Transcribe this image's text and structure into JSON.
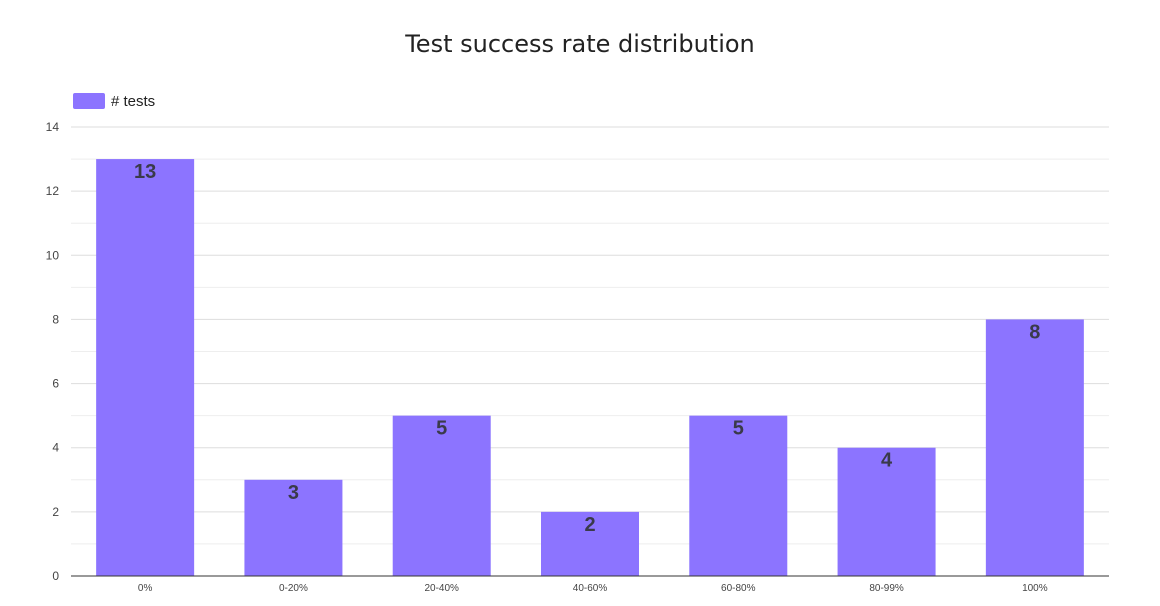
{
  "chart_data": {
    "type": "bar",
    "title": "Test success rate distribution",
    "categories": [
      "0%",
      "0-20%",
      "20-40%",
      "40-60%",
      "60-80%",
      "80-99%",
      "100%"
    ],
    "series": [
      {
        "name": "# tests",
        "values": [
          13,
          3,
          5,
          2,
          5,
          4,
          8
        ]
      }
    ],
    "xlabel": "",
    "ylabel": "",
    "ylim": [
      0,
      14
    ],
    "yticks": [
      0,
      2,
      4,
      6,
      8,
      10,
      12,
      14
    ],
    "grid": true,
    "data_labels": true,
    "legend_position": "top-left",
    "bar_color": "#8c74ff"
  }
}
